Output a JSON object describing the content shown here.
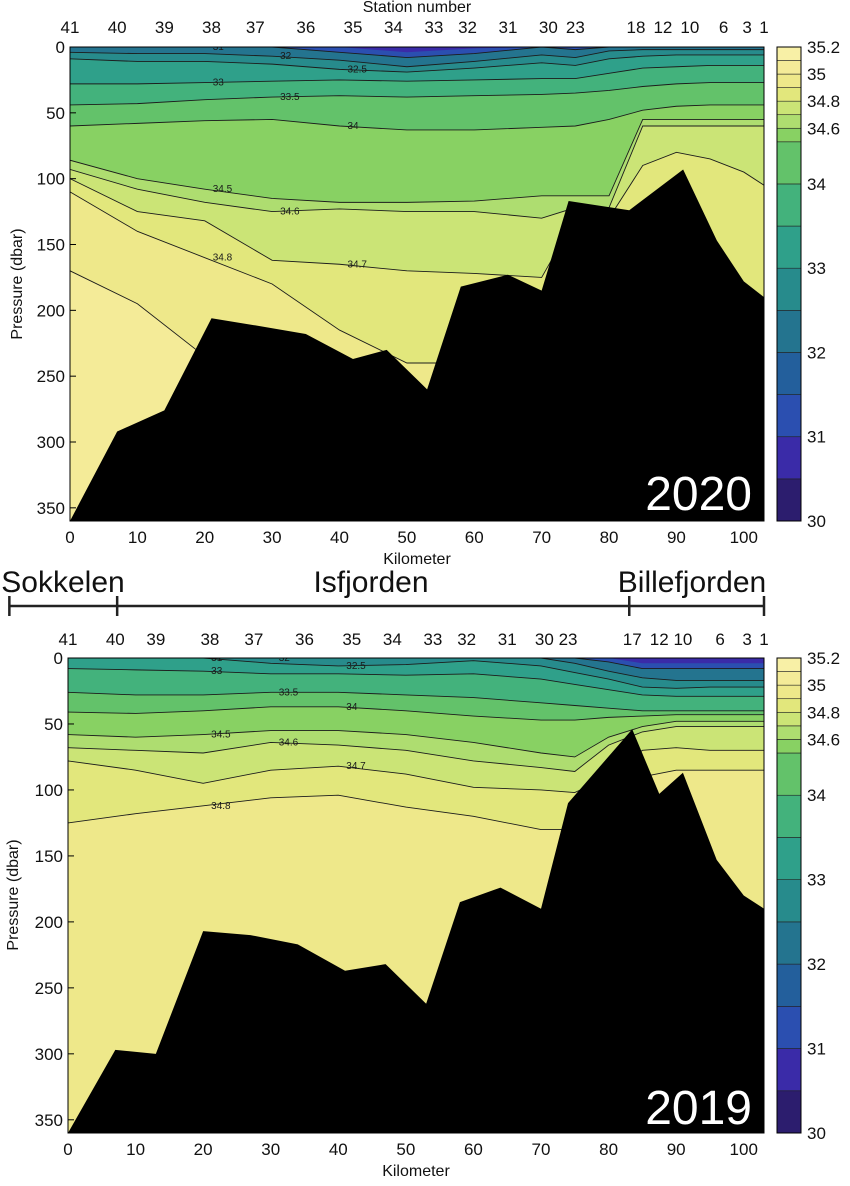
{
  "regions": {
    "labels": [
      "Sokkelen",
      "Isfjorden",
      "Billefjorden"
    ],
    "boundaries_km": [
      -9,
      7,
      83,
      103
    ]
  },
  "colorbar": {
    "levels": [
      30,
      30.5,
      31,
      31.5,
      32,
      32.5,
      33,
      33.5,
      34,
      34.5,
      34.6,
      34.7,
      34.8,
      34.9,
      35,
      35.1,
      35.2
    ],
    "colors": [
      "#2c1d6e",
      "#3a2ba8",
      "#2b4fb0",
      "#235f9c",
      "#24748f",
      "#278b8c",
      "#2fa08a",
      "#43b27c",
      "#63c26a",
      "#88d163",
      "#aedd70",
      "#cbe476",
      "#e2e77c",
      "#eee88a",
      "#f4eb98",
      "#f8f0a6"
    ],
    "tick_labels": [
      "30",
      "31",
      "32",
      "33",
      "34",
      "34.6",
      "34.8",
      "35",
      "35.2"
    ]
  },
  "chart_data": [
    {
      "type": "heatmap",
      "year_label": "2020",
      "xlabel": "Kilometer",
      "ylabel": "Pressure (dbar)",
      "top_axis_title": "Station number",
      "xlim": [
        0,
        103
      ],
      "ylim": [
        360,
        0
      ],
      "x_ticks": [
        "0",
        "10",
        "20",
        "30",
        "40",
        "50",
        "60",
        "70",
        "80",
        "90",
        "100"
      ],
      "y_ticks": [
        "0",
        "50",
        "100",
        "150",
        "200",
        "250",
        "300",
        "350"
      ],
      "stations": [
        {
          "label": "41",
          "km": 0
        },
        {
          "label": "40",
          "km": 7
        },
        {
          "label": "39",
          "km": 14
        },
        {
          "label": "38",
          "km": 21
        },
        {
          "label": "37",
          "km": 27.5
        },
        {
          "label": "36",
          "km": 35
        },
        {
          "label": "35",
          "km": 42
        },
        {
          "label": "34",
          "km": 48
        },
        {
          "label": "33",
          "km": 54
        },
        {
          "label": "32",
          "km": 59
        },
        {
          "label": "31",
          "km": 65
        },
        {
          "label": "30",
          "km": 71
        },
        {
          "label": "23",
          "km": 75
        },
        {
          "label": "18",
          "km": 84
        },
        {
          "label": "12",
          "km": 88
        },
        {
          "label": "10",
          "km": 92
        },
        {
          "label": "6",
          "km": 97
        },
        {
          "label": "3",
          "km": 100.5
        },
        {
          "label": "1",
          "km": 103
        }
      ],
      "bathymetry": {
        "km": [
          0,
          7,
          14,
          21,
          27,
          35,
          42,
          47,
          53,
          58,
          65,
          70,
          74,
          83,
          91,
          96,
          100,
          103
        ],
        "depth_dbar": [
          360,
          292,
          276,
          206,
          211,
          218,
          237,
          230,
          260,
          182,
          173,
          185,
          117,
          124,
          93,
          147,
          178,
          190
        ]
      },
      "salinity_layers": {
        "km": [
          0,
          10,
          20,
          30,
          40,
          50,
          60,
          70,
          75,
          80,
          85,
          90,
          95,
          100,
          103
        ],
        "boundaries": [
          {
            "level": 31,
            "depth": [
              0,
              0,
              0,
              0,
              4,
              8,
              5,
              0,
              2,
              0,
              0,
              0,
              0,
              0,
              0
            ]
          },
          {
            "level": 32,
            "depth": [
              4,
              5,
              5,
              7,
              10,
              15,
              11,
              6,
              8,
              3,
              2,
              2,
              2,
              2,
              2
            ]
          },
          {
            "level": 32.5,
            "depth": [
              9,
              11,
              11,
              13,
              17,
              19,
              16,
              12,
              14,
              9,
              7,
              6,
              6,
              6,
              6
            ]
          },
          {
            "level": 33,
            "depth": [
              28,
              28,
              27,
              26,
              25,
              26,
              25,
              24,
              24,
              20,
              16,
              15,
              14,
              14,
              14
            ]
          },
          {
            "level": 33.5,
            "depth": [
              44,
              43,
              40,
              38,
              37,
              38,
              37,
              36,
              35,
              33,
              30,
              28,
              27,
              27,
              27
            ]
          },
          {
            "level": 34,
            "depth": [
              60,
              58,
              56,
              55,
              60,
              63,
              63,
              61,
              60,
              55,
              48,
              45,
              44,
              44,
              44
            ]
          },
          {
            "level": 34.5,
            "depth": [
              86,
              100,
              108,
              115,
              118,
              118,
              117,
              113,
              113,
              113,
              55,
              55,
              55,
              55,
              55
            ]
          },
          {
            "level": 34.6,
            "depth": [
              93,
              108,
              118,
              125,
              123,
              125,
              125,
              130,
              122,
              122,
              60,
              60,
              60,
              60,
              60
            ]
          },
          {
            "level": 34.7,
            "depth": [
              100,
              125,
              132,
              162,
              165,
              170,
              172,
              175,
              130,
              130,
              90,
              80,
              85,
              95,
              105
            ]
          },
          {
            "level": 34.8,
            "depth": [
              110,
              140,
              160,
              180,
              215,
              240,
              240,
              240,
              240,
              240,
              240,
              240,
              240,
              240,
              240
            ]
          },
          {
            "level": 34.9,
            "depth": [
              170,
              195,
              235,
              290,
              290,
              290,
              290,
              290,
              290,
              290,
              290,
              290,
              290,
              290,
              290
            ]
          }
        ]
      }
    },
    {
      "type": "heatmap",
      "year_label": "2019",
      "xlabel": "Kilometer",
      "ylabel": "Pressure (dbar)",
      "xlim": [
        0,
        103
      ],
      "ylim": [
        360,
        0
      ],
      "x_ticks": [
        "0",
        "10",
        "20",
        "30",
        "40",
        "50",
        "60",
        "70",
        "80",
        "90",
        "100"
      ],
      "y_ticks": [
        "0",
        "50",
        "100",
        "150",
        "200",
        "250",
        "300",
        "350"
      ],
      "stations": [
        {
          "label": "41",
          "km": 0
        },
        {
          "label": "40",
          "km": 7
        },
        {
          "label": "39",
          "km": 13
        },
        {
          "label": "38",
          "km": 21
        },
        {
          "label": "37",
          "km": 27.5
        },
        {
          "label": "36",
          "km": 35
        },
        {
          "label": "35",
          "km": 42
        },
        {
          "label": "34",
          "km": 48
        },
        {
          "label": "33",
          "km": 54
        },
        {
          "label": "32",
          "km": 59
        },
        {
          "label": "31",
          "km": 65
        },
        {
          "label": "30",
          "km": 70.5
        },
        {
          "label": "23",
          "km": 74
        },
        {
          "label": "17",
          "km": 83.5
        },
        {
          "label": "12",
          "km": 87.5
        },
        {
          "label": "10",
          "km": 91
        },
        {
          "label": "6",
          "km": 96.5
        },
        {
          "label": "3",
          "km": 100.5
        },
        {
          "label": "1",
          "km": 103
        }
      ],
      "bathymetry": {
        "km": [
          0,
          7,
          13,
          20,
          27,
          34,
          41,
          47,
          53,
          58,
          64,
          70,
          74,
          83.5,
          87.5,
          91,
          96,
          100,
          103
        ],
        "depth_dbar": [
          360,
          297,
          300,
          207,
          210,
          217,
          237,
          232,
          262,
          185,
          174,
          190,
          110,
          54,
          103,
          87,
          153,
          180,
          190
        ]
      },
      "salinity_layers": {
        "km": [
          0,
          10,
          20,
          30,
          40,
          50,
          60,
          70,
          75,
          80,
          85,
          90,
          95,
          100,
          103
        ],
        "boundaries": [
          {
            "level": 31,
            "depth": [
              0,
              0,
              0,
              0,
              0,
              0,
              0,
              0,
              0,
              3,
              8,
              8,
              8,
              8,
              8
            ]
          },
          {
            "level": 32,
            "depth": [
              0,
              0,
              0,
              0,
              0,
              0,
              0,
              0,
              4,
              10,
              15,
              17,
              17,
              17,
              17
            ]
          },
          {
            "level": 32.5,
            "depth": [
              0,
              0,
              0,
              4,
              6,
              5,
              2,
              6,
              11,
              16,
              22,
              23,
              22,
              22,
              22
            ]
          },
          {
            "level": 33,
            "depth": [
              8,
              9,
              10,
              12,
              12,
              13,
              12,
              16,
              20,
              24,
              28,
              29,
              29,
              29,
              29
            ]
          },
          {
            "level": 33.5,
            "depth": [
              26,
              28,
              28,
              26,
              26,
              28,
              30,
              34,
              36,
              38,
              40,
              40,
              40,
              40,
              40
            ]
          },
          {
            "level": 34,
            "depth": [
              41,
              42,
              40,
              37,
              37,
              40,
              44,
              47,
              47,
              45,
              44,
              43,
              43,
              43,
              43
            ]
          },
          {
            "level": 34.5,
            "depth": [
              58,
              60,
              58,
              55,
              55,
              58,
              64,
              72,
              75,
              60,
              52,
              48,
              48,
              48,
              48
            ]
          },
          {
            "level": 34.6,
            "depth": [
              68,
              70,
              72,
              64,
              66,
              70,
              78,
              83,
              86,
              66,
              56,
              52,
              52,
              52,
              52
            ]
          },
          {
            "level": 34.7,
            "depth": [
              78,
              85,
              95,
              85,
              82,
              88,
              98,
              100,
              102,
              90,
              70,
              68,
              70,
              70,
              70
            ]
          },
          {
            "level": 34.8,
            "depth": [
              125,
              118,
              112,
              106,
              104,
              113,
              120,
              130,
              130,
              110,
              90,
              85,
              85,
              85,
              85
            ]
          },
          {
            "level": 34.9,
            "depth": [
              360,
              360,
              360,
              360,
              360,
              360,
              360,
              360,
              360,
              360,
              360,
              360,
              360,
              360,
              360
            ]
          }
        ]
      }
    }
  ]
}
